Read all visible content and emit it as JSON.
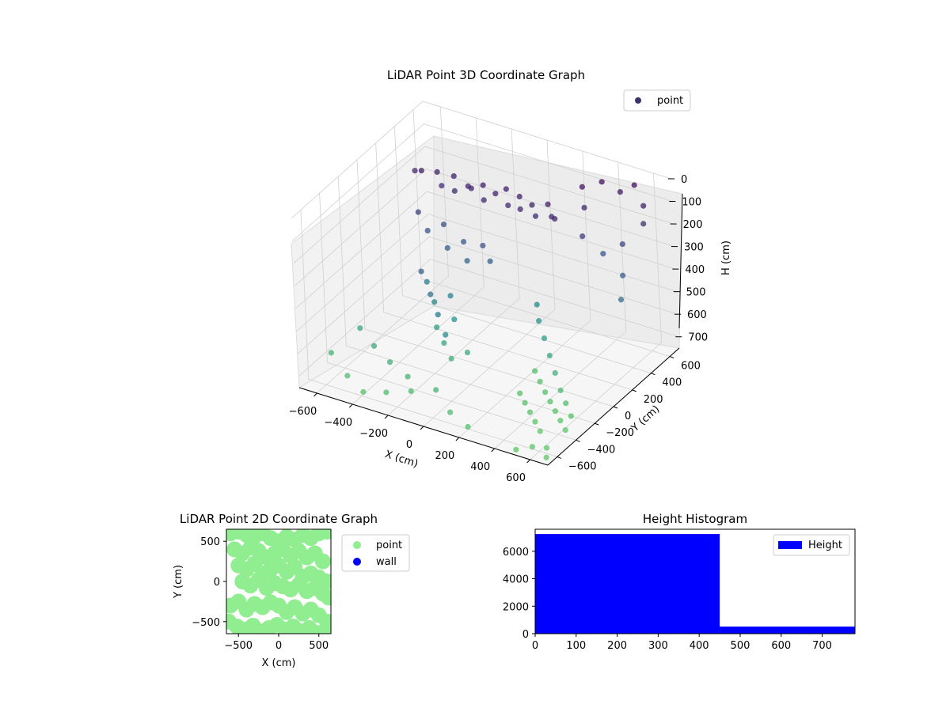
{
  "chart_data": [
    {
      "type": "scatter",
      "title": "LiDAR Point 3D Coordinate Graph",
      "xlabel": "X (cm)",
      "ylabel": "Y (cm)",
      "zlabel": "H (cm)",
      "legend": {
        "placement": "top-right",
        "entries": [
          "point"
        ]
      },
      "xlim": [
        -700,
        700
      ],
      "ylim": [
        -700,
        700
      ],
      "zlim": [
        750,
        0
      ],
      "x_ticks": [
        "−600",
        "−400",
        "−200",
        "0",
        "200",
        "400",
        "600"
      ],
      "y_ticks": [
        "−600",
        "−400",
        "−200",
        "0",
        "200",
        "400",
        "600"
      ],
      "z_ticks": [
        "0",
        "100",
        "200",
        "300",
        "400",
        "500",
        "600",
        "700"
      ],
      "grid": true,
      "colormap": "viridis (by height)",
      "series": [
        {
          "name": "point",
          "points": [
            [
              -540,
              300,
              120
            ],
            [
              -480,
              260,
              90
            ],
            [
              -430,
              330,
              110
            ],
            [
              -380,
              280,
              140
            ],
            [
              -330,
              320,
              100
            ],
            [
              -290,
              250,
              130
            ],
            [
              -240,
              300,
              115
            ],
            [
              -200,
              260,
              100
            ],
            [
              -160,
              310,
              95
            ],
            [
              -120,
              240,
              125
            ],
            [
              -80,
              290,
              105
            ],
            [
              -40,
              330,
              90
            ],
            [
              0,
              270,
              130
            ],
            [
              40,
              320,
              100
            ],
            [
              80,
              250,
              120
            ],
            [
              120,
              300,
              110
            ],
            [
              160,
              260,
              135
            ],
            [
              200,
              320,
              95
            ],
            [
              240,
              280,
              125
            ],
            [
              280,
              240,
              110
            ],
            [
              -420,
              100,
              200
            ],
            [
              -360,
              80,
              260
            ],
            [
              -300,
              140,
              240
            ],
            [
              -240,
              60,
              300
            ],
            [
              -180,
              120,
              280
            ],
            [
              -120,
              40,
              320
            ],
            [
              -60,
              100,
              260
            ],
            [
              0,
              60,
              300
            ],
            [
              -300,
              -60,
              420
            ],
            [
              -240,
              -100,
              480
            ],
            [
              -180,
              -40,
              460
            ],
            [
              -120,
              -120,
              520
            ],
            [
              -200,
              -160,
              560
            ],
            [
              -140,
              -200,
              600
            ],
            [
              -80,
              -240,
              640
            ],
            [
              -20,
              -180,
              620
            ],
            [
              -240,
              -220,
              300
            ],
            [
              -160,
              -280,
              360
            ],
            [
              -100,
              -320,
              420
            ],
            [
              -40,
              -360,
              480
            ],
            [
              300,
              500,
              60
            ],
            [
              380,
              560,
              40
            ],
            [
              460,
              600,
              80
            ],
            [
              520,
              640,
              50
            ],
            [
              600,
              580,
              100
            ],
            [
              640,
              500,
              140
            ],
            [
              560,
              420,
              220
            ],
            [
              480,
              360,
              260
            ],
            [
              400,
              300,
              180
            ],
            [
              340,
              440,
              120
            ],
            [
              620,
              300,
              300
            ],
            [
              660,
              200,
              360
            ],
            [
              240,
              100,
              520
            ],
            [
              300,
              40,
              560
            ],
            [
              360,
              -20,
              600
            ],
            [
              420,
              -80,
              640
            ],
            [
              480,
              -140,
              680
            ],
            [
              540,
              -200,
              700
            ],
            [
              600,
              -260,
              720
            ],
            [
              200,
              160,
              480
            ],
            [
              260,
              0,
              700
            ],
            [
              320,
              -60,
              710
            ],
            [
              380,
              -120,
              720
            ],
            [
              440,
              -180,
              725
            ],
            [
              500,
              -240,
              730
            ],
            [
              560,
              -300,
              735
            ],
            [
              620,
              -360,
              740
            ],
            [
              280,
              -200,
              720
            ],
            [
              340,
              -260,
              725
            ],
            [
              400,
              -320,
              730
            ],
            [
              460,
              -380,
              735
            ],
            [
              520,
              -440,
              740
            ],
            [
              -620,
              -500,
              650
            ],
            [
              -500,
              -560,
              700
            ],
            [
              -380,
              -620,
              720
            ],
            [
              -260,
              -600,
              700
            ],
            [
              -140,
              -560,
              680
            ],
            [
              -20,
              -520,
              660
            ],
            [
              100,
              -600,
              700
            ],
            [
              220,
              -640,
              720
            ],
            [
              -560,
              -300,
              600
            ],
            [
              -440,
              -380,
              620
            ],
            [
              -320,
              -440,
              640
            ],
            [
              -200,
              -480,
              660
            ],
            [
              560,
              -600,
              740
            ],
            [
              620,
              -560,
              745
            ],
            [
              660,
              -640,
              748
            ],
            [
              500,
              -660,
              745
            ]
          ]
        }
      ]
    },
    {
      "type": "scatter",
      "title": "LiDAR Point 2D Coordinate Graph",
      "xlabel": "X (cm)",
      "ylabel": "Y (cm)",
      "xlim": [
        -650,
        650
      ],
      "ylim": [
        -650,
        650
      ],
      "x_ticks": [
        "−500",
        "0",
        "500"
      ],
      "y_ticks": [
        "−500",
        "0",
        "500"
      ],
      "legend": {
        "placement": "outside-right",
        "entries": [
          "point",
          "wall"
        ]
      },
      "series": [
        {
          "name": "point",
          "color": "#90ee90",
          "points": [
            [
              -600,
              600
            ],
            [
              -500,
              620
            ],
            [
              -400,
              580
            ],
            [
              -300,
              560
            ],
            [
              -200,
              600
            ],
            [
              -100,
              540
            ],
            [
              0,
              500
            ],
            [
              100,
              560
            ],
            [
              200,
              520
            ],
            [
              300,
              580
            ],
            [
              400,
              540
            ],
            [
              500,
              600
            ],
            [
              600,
              620
            ],
            [
              -550,
              400
            ],
            [
              -450,
              350
            ],
            [
              -350,
              420
            ],
            [
              -250,
              380
            ],
            [
              -150,
              300
            ],
            [
              -50,
              350
            ],
            [
              50,
              400
            ],
            [
              150,
              320
            ],
            [
              250,
              380
            ],
            [
              350,
              300
            ],
            [
              450,
              350
            ],
            [
              550,
              250
            ],
            [
              -500,
              200
            ],
            [
              -400,
              150
            ],
            [
              -300,
              220
            ],
            [
              -200,
              100
            ],
            [
              -100,
              150
            ],
            [
              0,
              200
            ],
            [
              100,
              120
            ],
            [
              200,
              180
            ],
            [
              300,
              60
            ],
            [
              400,
              100
            ],
            [
              500,
              50
            ],
            [
              600,
              0
            ],
            [
              -450,
              0
            ],
            [
              -350,
              -50
            ],
            [
              -250,
              20
            ],
            [
              -150,
              -80
            ],
            [
              -50,
              -20
            ],
            [
              50,
              -60
            ],
            [
              150,
              -100
            ],
            [
              250,
              -40
            ],
            [
              350,
              -120
            ],
            [
              450,
              -80
            ],
            [
              550,
              -150
            ],
            [
              620,
              -200
            ],
            [
              -600,
              -300
            ],
            [
              -500,
              -250
            ],
            [
              -400,
              -350
            ],
            [
              -300,
              -280
            ],
            [
              -200,
              -320
            ],
            [
              -100,
              -260
            ],
            [
              0,
              -300
            ],
            [
              100,
              -380
            ],
            [
              200,
              -320
            ],
            [
              300,
              -400
            ],
            [
              400,
              -350
            ],
            [
              500,
              -420
            ],
            [
              600,
              -500
            ],
            [
              -620,
              -500
            ],
            [
              -520,
              -560
            ],
            [
              -420,
              -600
            ],
            [
              -320,
              -550
            ],
            [
              -220,
              -620
            ],
            [
              -120,
              -580
            ],
            [
              -20,
              -540
            ],
            [
              80,
              -600
            ],
            [
              180,
              -560
            ],
            [
              280,
              -620
            ],
            [
              380,
              -580
            ],
            [
              480,
              -640
            ],
            [
              600,
              -620
            ]
          ]
        },
        {
          "name": "wall",
          "color": "#0000ff",
          "points": []
        }
      ]
    },
    {
      "type": "bar",
      "title": "Height Histogram",
      "xlim": [
        0,
        780
      ],
      "ylim": [
        0,
        7600
      ],
      "x_ticks": [
        "0",
        "100",
        "200",
        "300",
        "400",
        "500",
        "600",
        "700"
      ],
      "y_ticks": [
        "0",
        "2000",
        "4000",
        "6000"
      ],
      "legend": {
        "placement": "top-right",
        "entries": [
          "Height"
        ]
      },
      "color": "#0000ff",
      "bins": [
        {
          "from": 0,
          "to": 450,
          "count": 7250
        },
        {
          "from": 450,
          "to": 780,
          "count": 520
        }
      ]
    }
  ]
}
